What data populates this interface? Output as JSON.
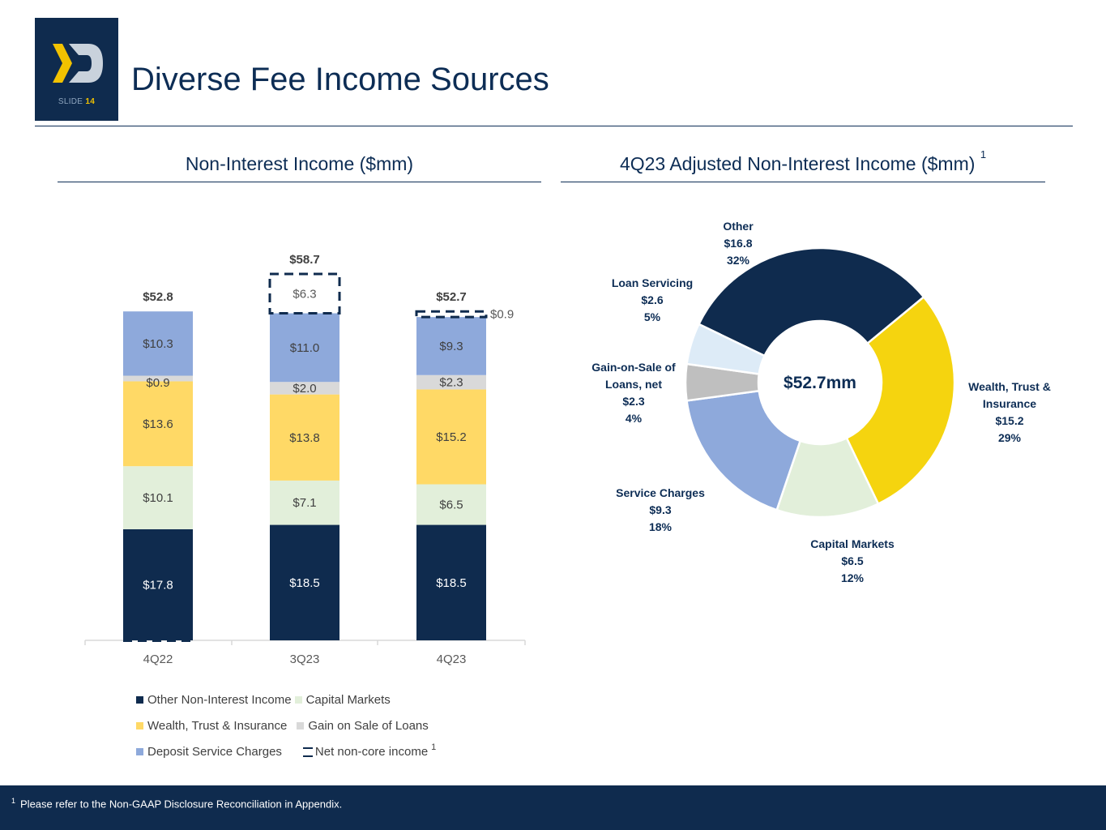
{
  "header": {
    "slide_label": "SLIDE",
    "slide_number": "14",
    "title": "Diverse Fee Income Sources"
  },
  "left_section": {
    "title": "Non-Interest Income ($mm)"
  },
  "right_section": {
    "title": "4Q23 Adjusted Non-Interest Income ($mm)",
    "footnote_mark": "1"
  },
  "colors": {
    "navy": "#0F2B4E",
    "capital_markets": "#E2EFDA",
    "wealth": "#FFD966",
    "gain_on_sale": "#D9D9D9",
    "deposit": "#8EA9DB",
    "pie_wealth": "#F5D40F",
    "pie_gain": "#BFBFBF",
    "pie_loan_servicing": "#DDEBF7"
  },
  "chart_data": [
    {
      "type": "bar",
      "stacked": true,
      "title": "Non-Interest Income ($mm)",
      "categories": [
        "4Q22",
        "3Q23",
        "4Q23"
      ],
      "series": [
        {
          "name": "Other Non-Interest Income",
          "values": [
            17.8,
            18.5,
            18.5
          ],
          "labels": [
            "$17.8",
            "$18.5",
            "$18.5"
          ],
          "color": "#0F2B4E",
          "label_color": "#ffffff"
        },
        {
          "name": "Capital Markets",
          "values": [
            10.1,
            7.1,
            6.5
          ],
          "labels": [
            "$10.1",
            "$7.1",
            "$6.5"
          ],
          "color": "#E2EFDA",
          "label_color": "#404040"
        },
        {
          "name": "Wealth, Trust & Insurance",
          "values": [
            13.6,
            13.8,
            15.2
          ],
          "labels": [
            "$13.6",
            "$13.8",
            "$15.2"
          ],
          "color": "#FFD966",
          "label_color": "#404040"
        },
        {
          "name": "Gain on Sale of Loans",
          "values": [
            0.9,
            2.0,
            2.3
          ],
          "labels": [
            "$0.9",
            "$2.0",
            "$2.3"
          ],
          "color": "#D9D9D9",
          "label_color": "#404040"
        },
        {
          "name": "Deposit Service Charges",
          "values": [
            10.3,
            11.0,
            9.3
          ],
          "labels": [
            "$10.3",
            "$11.0",
            "$9.3"
          ],
          "color": "#8EA9DB",
          "label_color": "#404040"
        },
        {
          "name": "Net non-core income",
          "values": [
            0,
            6.3,
            0.9
          ],
          "labels": [
            "",
            "$6.3",
            "$0.9"
          ],
          "dashed": true,
          "footnote_mark": "1"
        }
      ],
      "totals": [
        "$52.8",
        "$58.7",
        "$52.7"
      ],
      "ylim": [
        0,
        60
      ]
    },
    {
      "type": "pie",
      "donut": true,
      "title": "4Q23 Adjusted Non-Interest Income ($mm)",
      "center_label": "$52.7mm",
      "slices": [
        {
          "name": "Other",
          "label_lines": [
            "Other"
          ],
          "value": 16.8,
          "value_label": "$16.8",
          "percent": "32%",
          "color": "#0F2B4E"
        },
        {
          "name": "Wealth, Trust & Insurance",
          "label_lines": [
            "Wealth, Trust &",
            "Insurance"
          ],
          "value": 15.2,
          "value_label": "$15.2",
          "percent": "29%",
          "color": "#F5D40F"
        },
        {
          "name": "Capital Markets",
          "label_lines": [
            "Capital Markets"
          ],
          "value": 6.5,
          "value_label": "$6.5",
          "percent": "12%",
          "color": "#E2EFDA"
        },
        {
          "name": "Service Charges",
          "label_lines": [
            "Service Charges"
          ],
          "value": 9.3,
          "value_label": "$9.3",
          "percent": "18%",
          "color": "#8EA9DB"
        },
        {
          "name": "Gain-on-Sale of Loans, net",
          "label_lines": [
            "Gain-on-Sale of",
            "Loans, net"
          ],
          "value": 2.3,
          "value_label": "$2.3",
          "percent": "4%",
          "color": "#BFBFBF"
        },
        {
          "name": "Loan Servicing",
          "label_lines": [
            "Loan Servicing"
          ],
          "value": 2.6,
          "value_label": "$2.6",
          "percent": "5%",
          "color": "#DDEBF7"
        }
      ]
    }
  ],
  "legend": {
    "items": [
      {
        "label": "Other Non-Interest Income",
        "color": "#0F2B4E"
      },
      {
        "label": "Capital Markets",
        "color": "#E2EFDA"
      },
      {
        "label": "Wealth, Trust & Insurance",
        "color": "#FFD966"
      },
      {
        "label": "Gain on Sale of Loans",
        "color": "#D9D9D9"
      },
      {
        "label": "Deposit Service Charges",
        "color": "#8EA9DB"
      },
      {
        "label": "Net non-core income",
        "dashed": true
      }
    ],
    "footnote_mark": "1"
  },
  "footer": {
    "footnote_mark": "1",
    "footnote_text": "Please refer to the Non-GAAP Disclosure Reconciliation in Appendix."
  }
}
